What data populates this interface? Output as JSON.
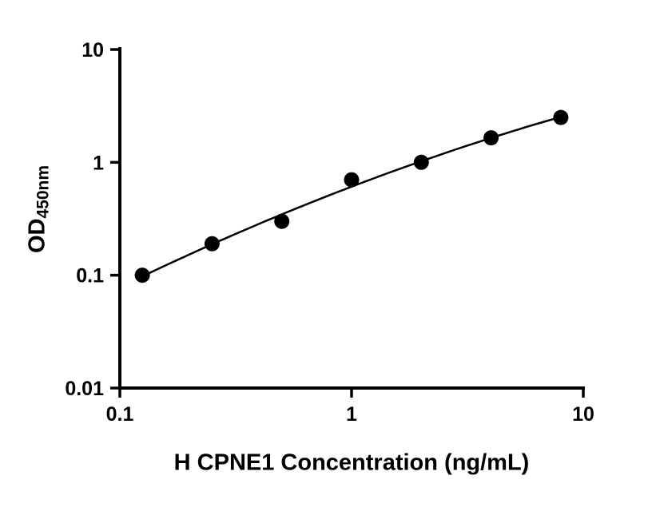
{
  "chart_data": {
    "type": "scatter",
    "title": "",
    "x": [
      0.125,
      0.25,
      0.5,
      1,
      2,
      4,
      8
    ],
    "y": [
      0.1,
      0.19,
      0.3,
      0.7,
      1.0,
      1.65,
      2.5
    ],
    "fit": "smooth sigmoidal standard-curve fit through points",
    "xlabel": "H CPNE1 Concentration (ng/mL)",
    "ylabel": "OD450nm",
    "ylabel_main": "OD",
    "ylabel_sub": "450nm",
    "x_scale": "log",
    "y_scale": "log",
    "xlim": [
      0.1,
      10
    ],
    "ylim": [
      0.01,
      10
    ],
    "x_ticks": [
      0.1,
      1,
      10
    ],
    "x_tick_labels": [
      "0.1",
      "1",
      "10"
    ],
    "y_ticks": [
      10,
      1,
      0.1,
      0.01
    ],
    "y_tick_labels": [
      "10",
      "1",
      "0.1",
      "0.01"
    ],
    "grid": false,
    "legend": "none",
    "marker_color": "#000000",
    "line_color": "#000000",
    "axis_color": "#000000",
    "background_color": "#ffffff"
  }
}
